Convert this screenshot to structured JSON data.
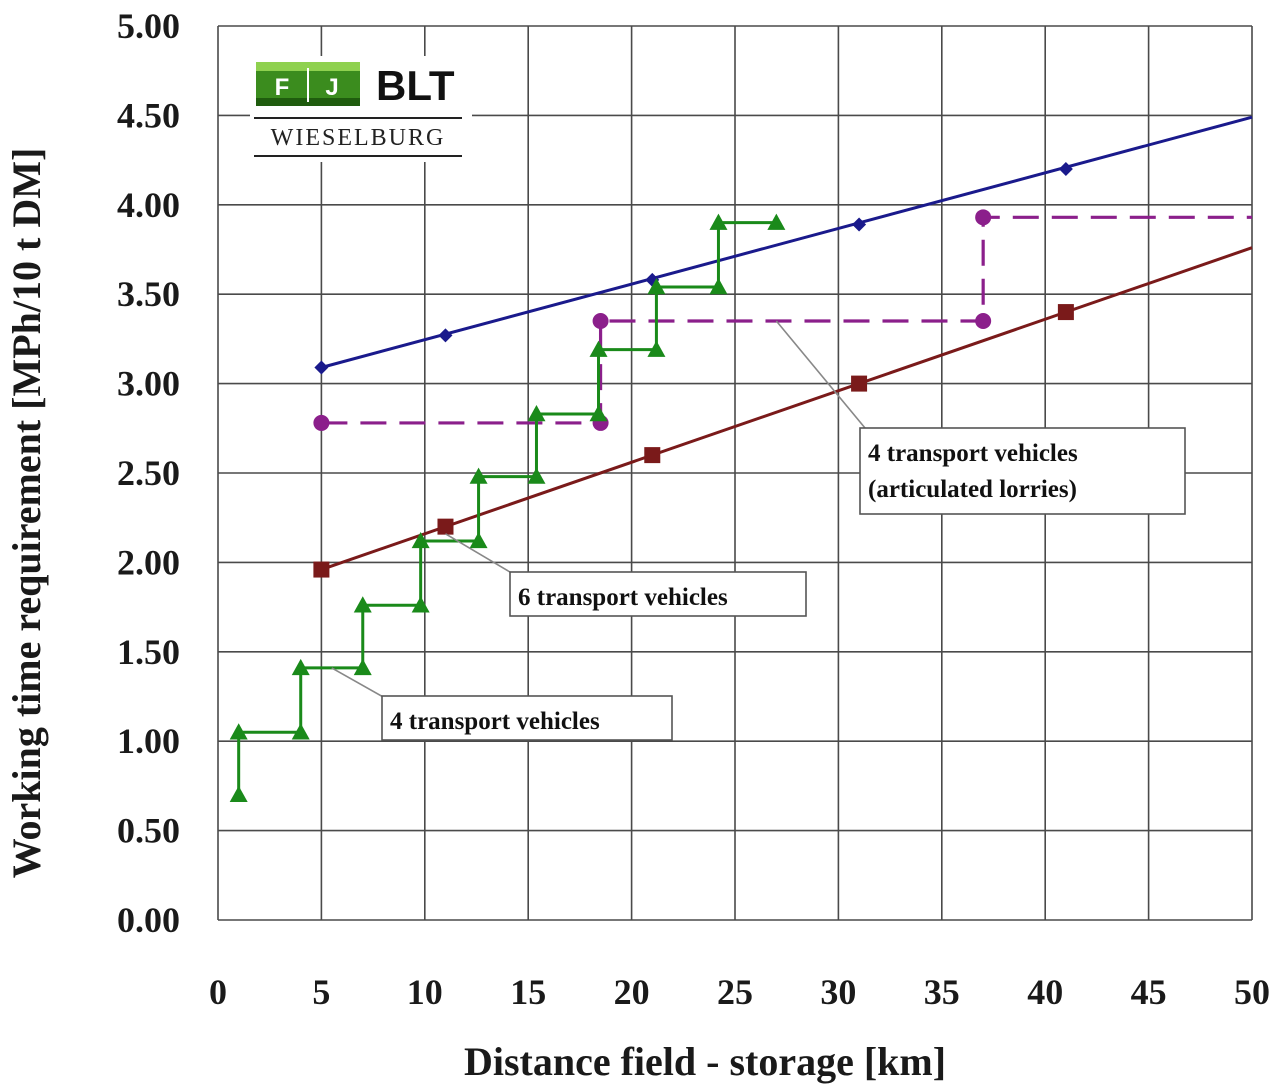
{
  "chart_data": {
    "type": "line",
    "xlabel": "Distance field - storage [km]",
    "ylabel": "Working time requirement [MPh/10 t DM]",
    "xlim": [
      0,
      50
    ],
    "ylim": [
      0,
      5
    ],
    "grid": true,
    "x_ticks": [
      "0",
      "5",
      "10",
      "15",
      "20",
      "25",
      "30",
      "35",
      "40",
      "45",
      "50"
    ],
    "y_ticks": [
      "0.00",
      "0.50",
      "1.00",
      "1.50",
      "2.00",
      "2.50",
      "3.00",
      "3.50",
      "4.00",
      "4.50",
      "5.00"
    ],
    "series": [
      {
        "color": "#1a1a8c",
        "marker": "diamond",
        "style": "solid",
        "markers": [
          [
            5,
            3.09
          ],
          [
            11,
            3.27
          ],
          [
            21,
            3.58
          ],
          [
            31,
            3.89
          ],
          [
            41,
            4.2
          ]
        ],
        "line": [
          [
            5,
            3.09
          ],
          [
            50,
            4.49
          ]
        ]
      },
      {
        "color": "#7a1a1a",
        "marker": "square",
        "style": "solid",
        "markers": [
          [
            5,
            1.96
          ],
          [
            11,
            2.2
          ],
          [
            21,
            2.6
          ],
          [
            31,
            3.0
          ],
          [
            41,
            3.4
          ]
        ],
        "line": [
          [
            5,
            1.96
          ],
          [
            50,
            3.76
          ]
        ]
      },
      {
        "color": "#8b1f8b",
        "marker": "circle",
        "style": "dashed-step",
        "markers": [
          [
            5,
            2.78
          ],
          [
            18.5,
            2.78
          ],
          [
            18.5,
            3.35
          ],
          [
            37,
            3.35
          ],
          [
            37,
            3.93
          ]
        ],
        "line": [
          [
            5,
            2.78
          ],
          [
            18.5,
            2.78
          ],
          [
            18.5,
            3.35
          ],
          [
            37,
            3.35
          ],
          [
            37,
            3.93
          ],
          [
            50,
            3.93
          ]
        ]
      },
      {
        "color": "#1a8a1a",
        "marker": "triangle",
        "style": "solid-step",
        "markers": [
          [
            1,
            0.7
          ],
          [
            1,
            1.05
          ],
          [
            4,
            1.05
          ],
          [
            4,
            1.41
          ],
          [
            7,
            1.41
          ],
          [
            7,
            1.76
          ],
          [
            9.8,
            1.76
          ],
          [
            9.8,
            2.12
          ],
          [
            12.6,
            2.12
          ],
          [
            12.6,
            2.48
          ],
          [
            15.4,
            2.48
          ],
          [
            15.4,
            2.83
          ],
          [
            18.4,
            2.83
          ],
          [
            18.4,
            3.19
          ],
          [
            21.2,
            3.19
          ],
          [
            21.2,
            3.54
          ],
          [
            24.2,
            3.54
          ],
          [
            24.2,
            3.9
          ],
          [
            27,
            3.9
          ]
        ],
        "line": [
          [
            1,
            0.7
          ],
          [
            1,
            1.05
          ],
          [
            4,
            1.05
          ],
          [
            4,
            1.41
          ],
          [
            7,
            1.41
          ],
          [
            7,
            1.76
          ],
          [
            9.8,
            1.76
          ],
          [
            9.8,
            2.12
          ],
          [
            12.6,
            2.12
          ],
          [
            12.6,
            2.48
          ],
          [
            15.4,
            2.48
          ],
          [
            15.4,
            2.83
          ],
          [
            18.4,
            2.83
          ],
          [
            18.4,
            3.19
          ],
          [
            21.2,
            3.19
          ],
          [
            21.2,
            3.54
          ],
          [
            24.2,
            3.54
          ],
          [
            24.2,
            3.9
          ],
          [
            27,
            3.9
          ]
        ]
      }
    ],
    "annotations": [
      {
        "lines": [
          "4 transport vehicles",
          "(articulated lorries)"
        ],
        "target": [
          27,
          3.35
        ]
      },
      {
        "lines": [
          "6 transport vehicles"
        ],
        "target": [
          11,
          2.16
        ]
      },
      {
        "lines": [
          "4 transport vehicles"
        ],
        "target": [
          5.5,
          1.41
        ]
      }
    ]
  },
  "logo": {
    "letters": [
      "F",
      "J"
    ],
    "brand": "BLT",
    "subtitle": "WIESELBURG"
  }
}
